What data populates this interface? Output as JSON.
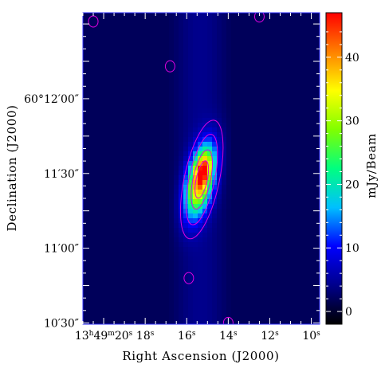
{
  "chart_data": {
    "type": "heatmap",
    "title": "",
    "xlabel": "Right Ascension (J2000)",
    "ylabel": "Declination (J2000)",
    "colorbar_label": "mJy/Beam",
    "x_ticks": [
      {
        "value": 20,
        "label_html": "13<tspan font-size='9' dy='-5'>h</tspan><tspan dy='5'>49</tspan><tspan font-size='9' dy='-5'>m</tspan><tspan dy='5'>20</tspan><tspan font-size='9' dy='-5'>s</tspan>"
      },
      {
        "value": 18,
        "label_html": "<tspan dy='0'>18</tspan><tspan font-size='9' dy='-5'>s</tspan>"
      },
      {
        "value": 16,
        "label_html": "<tspan dy='0'>16</tspan><tspan font-size='9' dy='-5'>s</tspan>"
      },
      {
        "value": 14,
        "label_html": "<tspan dy='0'>14</tspan><tspan font-size='9' dy='-5'>s</tspan>"
      },
      {
        "value": 12,
        "label_html": "<tspan dy='0'>12</tspan><tspan font-size='9' dy='-5'>s</tspan>"
      },
      {
        "value": 10,
        "label_html": "<tspan dy='0'>10</tspan><tspan font-size='9' dy='-5'>s</tspan>"
      }
    ],
    "y_ticks": [
      {
        "value": 30,
        "label": "10′30″"
      },
      {
        "value": 60,
        "label": "11′00″"
      },
      {
        "value": 90,
        "label": "11′30″"
      },
      {
        "value": 120,
        "label": "60°12′00″"
      }
    ],
    "xlim_seconds": [
      21.0,
      9.6
    ],
    "ylim_arcsec_past_10min": [
      29.5,
      154.5
    ],
    "colorbar": {
      "range": [
        -2,
        47
      ],
      "ticks": [
        0,
        10,
        20,
        30,
        40
      ],
      "colormap": [
        "#000000",
        "#00008b",
        "#0000ff",
        "#00c0ff",
        "#00ff80",
        "#80ff00",
        "#ffff00",
        "#ff8000",
        "#ff0000"
      ]
    },
    "source": {
      "peak_mjy_per_beam": 47,
      "peak_ra_s": 15.35,
      "peak_dec": 87,
      "second_peak_ra_s": 15.2,
      "second_peak_dec": 92,
      "major_axis_pa_deg_from_north": 12,
      "background_mjy_per_beam": 1
    },
    "contours": {
      "color": "#e000e0",
      "levels_mjy_per_beam": [
        5,
        10,
        20,
        30
      ],
      "noise_islands": [
        {
          "ra_s": 16.8,
          "dec": 133
        },
        {
          "ra_s": 20.5,
          "dec": 151
        },
        {
          "ra_s": 12.5,
          "dec": 153
        },
        {
          "ra_s": 15.9,
          "dec": 48
        },
        {
          "ra_s": 14.0,
          "dec": 30
        }
      ]
    }
  }
}
